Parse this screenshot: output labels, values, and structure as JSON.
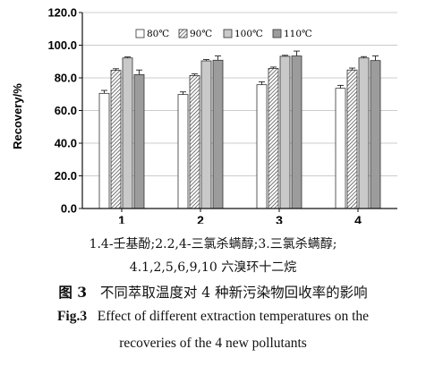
{
  "chart_data": {
    "type": "bar",
    "categories": [
      "1",
      "2",
      "3",
      "4"
    ],
    "series": [
      {
        "name": "80℃",
        "values": [
          70.5,
          69.8,
          75.8,
          73.6
        ],
        "errors": [
          1.8,
          1.6,
          1.8,
          1.8
        ],
        "pattern": "white"
      },
      {
        "name": "90℃",
        "values": [
          84.6,
          81.4,
          85.8,
          84.8
        ],
        "errors": [
          1.0,
          1.0,
          0.8,
          1.2
        ],
        "pattern": "hatch"
      },
      {
        "name": "100℃",
        "values": [
          92.2,
          90.4,
          93.2,
          92.2
        ],
        "errors": [
          0.6,
          0.8,
          0.6,
          0.8
        ],
        "pattern": "light-gray"
      },
      {
        "name": "110℃",
        "values": [
          82.0,
          90.8,
          93.4,
          90.6
        ],
        "errors": [
          2.8,
          2.6,
          3.0,
          2.8
        ],
        "pattern": "mid-gray"
      }
    ],
    "ylabel": "Recovery/%",
    "xlabel": "",
    "ylim": [
      0,
      120
    ],
    "yticks": [
      "0.0",
      "20.0",
      "40.0",
      "60.0",
      "80.0",
      "100.0",
      "120.0"
    ],
    "grid": true,
    "legend_position": "top-center"
  },
  "caption": {
    "note_line1": "1.4-壬基酚;2.2,4-三氯杀螨醇;3.三氯杀螨醇;",
    "note_line2": "4.1,2,5,6,9,10 六溴环十二烷",
    "fig_label_cn": "图 3",
    "title_cn": "不同萃取温度对 4 种新污染物回收率的影响",
    "fig_label_en": "Fig.3",
    "title_en_line1": "Effect of different extraction temperatures on the",
    "title_en_line2": "recoveries of the 4 new pollutants"
  },
  "colors": {
    "white": "#ffffff",
    "light-gray": "#c9c9c9",
    "mid-gray": "#9c9c9c",
    "hatch": "#444444",
    "axis": "#111111",
    "grid": "#cccccc"
  }
}
